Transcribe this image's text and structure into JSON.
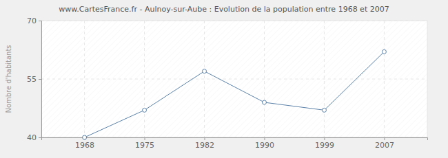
{
  "chart_data": {
    "type": "line",
    "title": "www.CartesFrance.fr - Aulnoy-sur-Aube : Evolution de la population entre 1968 et 2007",
    "y_label": "Nombre d'habitants",
    "categories": [
      "1968",
      "1975",
      "1982",
      "1990",
      "1999",
      "2007"
    ],
    "values": [
      40,
      47,
      57,
      49,
      47,
      62
    ],
    "color": "#5b82a9",
    "marker": "circle",
    "ylim": [
      40,
      70
    ],
    "yticks": [
      40,
      55,
      70
    ],
    "grid": true
  }
}
